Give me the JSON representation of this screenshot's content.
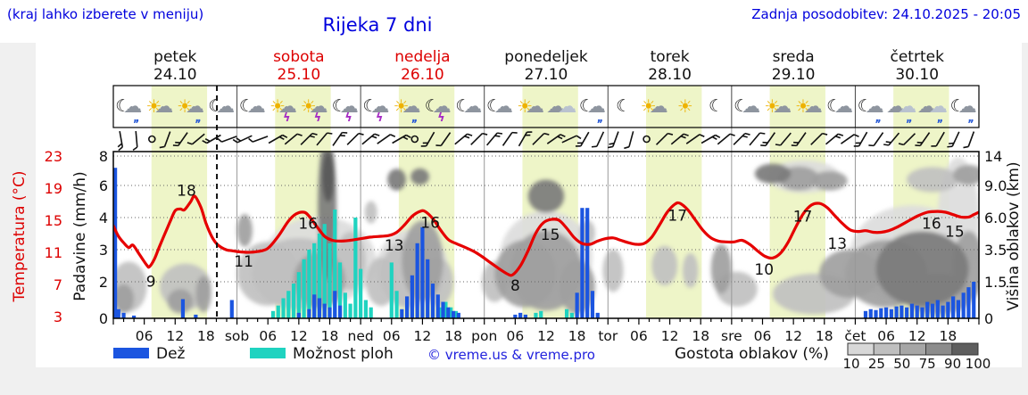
{
  "header": {
    "hint": "(kraj lahko izberete v meniju)",
    "title": "Rijeka 7 dni",
    "last_update": "Zadnja posodobitev: 24.10.2025 - 20:05"
  },
  "colors": {
    "rain": "#1b55e0",
    "showers": "#1fd3c0",
    "temperature": "#e60000",
    "day_band": "#eef5c8",
    "weekend": "#dd0000",
    "weekday": "#111111",
    "blue_text": "#0000dd",
    "cloud_shades": {
      "25": "#dcdcdc",
      "50": "#c0c0c0",
      "75": "#9f9f9f",
      "90": "#7b7b7b",
      "100": "#585858"
    }
  },
  "days": [
    {
      "name": "petek",
      "date": "24.10",
      "weekend": false
    },
    {
      "name": "sobota",
      "date": "25.10",
      "weekend": true
    },
    {
      "name": "nedelja",
      "date": "26.10",
      "weekend": true
    },
    {
      "name": "ponedeljek",
      "date": "27.10",
      "weekend": false
    },
    {
      "name": "torek",
      "date": "28.10",
      "weekend": false
    },
    {
      "name": "sreda",
      "date": "29.10",
      "weekend": false
    },
    {
      "name": "četrtek",
      "date": "30.10",
      "weekend": false
    }
  ],
  "axes": {
    "temp_title": "Temperatura (°C)",
    "temp_ticks": [
      "23",
      "19",
      "15",
      "11",
      "7",
      "3"
    ],
    "rain_title": "Padavine (mm/h)",
    "rain_ticks": [
      "8",
      "6",
      "4",
      "3",
      "2",
      "0"
    ],
    "cloud_title": "Višina oblakov (km)",
    "cloud_ticks": [
      "14",
      "9.0",
      "6.0",
      "3.5",
      "1.5",
      "0"
    ],
    "time_labels": [
      "06",
      "12",
      "18"
    ],
    "day_abbrevs": [
      "sob",
      "ned",
      "pon",
      "tor",
      "sre",
      "čet"
    ]
  },
  "icons": [
    [
      "moon",
      "cloud",
      "rain"
    ],
    [
      "sun",
      "cloud"
    ],
    [
      "sun",
      "cloud",
      "rain"
    ],
    [
      "moon",
      "cloud"
    ],
    [
      "moon",
      "cloud"
    ],
    [
      "sun",
      "cloud",
      "bolt"
    ],
    [
      "sun",
      "cloud",
      "bolt"
    ],
    [
      "moon",
      "cloud",
      "bolt"
    ],
    [
      "moon",
      "cloud",
      "bolt"
    ],
    [
      "sun",
      "cloud",
      "rain"
    ],
    [
      "moon",
      "cloud",
      "bolt"
    ],
    [
      "moon",
      "cloud"
    ],
    [
      "moon",
      "cloud"
    ],
    [
      "sun",
      "cloud"
    ],
    [
      "clouds"
    ],
    [
      "moon",
      "cloud",
      "rain"
    ],
    [
      "moon"
    ],
    [
      "sun",
      "cloud"
    ],
    [
      "sun"
    ],
    [
      "moon"
    ],
    [
      "moon",
      "cloud"
    ],
    [
      "sun",
      "cloud"
    ],
    [
      "sun",
      "cloud"
    ],
    [
      "moon",
      "cloud"
    ],
    [
      "moon",
      "cloud",
      "rain"
    ],
    [
      "clouds",
      "rain"
    ],
    [
      "clouds",
      "rain"
    ],
    [
      "moon",
      "cloud",
      "rain"
    ]
  ],
  "wind": [
    170,
    175,
    "o",
    200,
    215,
    230,
    240,
    250,
    245,
    250,
    60,
    50,
    45,
    40,
    35,
    45,
    50,
    55,
    60,
    "o",
    210,
    215,
    50,
    45,
    40,
    35,
    30,
    45,
    55,
    65,
    210,
    205,
    200,
    195,
    "o",
    45,
    50,
    55,
    60,
    50,
    45,
    40,
    215,
    220,
    215,
    45,
    50,
    55,
    210,
    215,
    220,
    225,
    215,
    210,
    205,
    200
  ],
  "chart_data": {
    "type": "meteogram",
    "title": "Rijeka 7 dni",
    "hours_total": 168,
    "current_time_hour": 20.1,
    "day_band_hours": [
      7.4,
      18.2
    ],
    "temp_axis": {
      "min": 3,
      "max": 23,
      "ticks": [
        23,
        19,
        15,
        11,
        7,
        3
      ]
    },
    "rain_axis": {
      "ticks": [
        8,
        6,
        4,
        3,
        2,
        0
      ]
    },
    "cloud_axis_km": {
      "ticks": [
        14,
        9.0,
        6.0,
        3.5,
        1.5,
        0
      ]
    },
    "temperature": [
      [
        0,
        14.3
      ],
      [
        1,
        13.0
      ],
      [
        2,
        12.2
      ],
      [
        3,
        11.6
      ],
      [
        3.8,
        11.9
      ],
      [
        5,
        10.8
      ],
      [
        6.5,
        9.4
      ],
      [
        7,
        9.2
      ],
      [
        8,
        10.2
      ],
      [
        9,
        11.8
      ],
      [
        10,
        13.3
      ],
      [
        11,
        14.8
      ],
      [
        12,
        16.2
      ],
      [
        13,
        16.4
      ],
      [
        13.8,
        16.3
      ],
      [
        15,
        17.3
      ],
      [
        15.8,
        18.0
      ],
      [
        17,
        16.6
      ],
      [
        18,
        14.6
      ],
      [
        19,
        13.1
      ],
      [
        20,
        12.1
      ],
      [
        21,
        11.6
      ],
      [
        22,
        11.3
      ],
      [
        23,
        11.2
      ],
      [
        24,
        11.1
      ],
      [
        26,
        11.0
      ],
      [
        28,
        11.1
      ],
      [
        30,
        11.5
      ],
      [
        32,
        13.0
      ],
      [
        34,
        14.9
      ],
      [
        35.5,
        15.8
      ],
      [
        37,
        16.0
      ],
      [
        38,
        15.5
      ],
      [
        39.5,
        14.2
      ],
      [
        41,
        13.0
      ],
      [
        42.5,
        12.5
      ],
      [
        44,
        12.4
      ],
      [
        46,
        12.5
      ],
      [
        48,
        12.7
      ],
      [
        50,
        12.9
      ],
      [
        52,
        13.0
      ],
      [
        53.5,
        13.1
      ],
      [
        55,
        13.5
      ],
      [
        56.5,
        14.4
      ],
      [
        58,
        15.5
      ],
      [
        59.5,
        16.1
      ],
      [
        60.5,
        16.1
      ],
      [
        62,
        15.2
      ],
      [
        63.5,
        13.8
      ],
      [
        65,
        12.6
      ],
      [
        66.5,
        12.1
      ],
      [
        68,
        11.7
      ],
      [
        70,
        11.1
      ],
      [
        71.5,
        10.5
      ],
      [
        73,
        9.8
      ],
      [
        75,
        8.9
      ],
      [
        76.5,
        8.3
      ],
      [
        77.5,
        8.2
      ],
      [
        79,
        9.3
      ],
      [
        80.5,
        11.2
      ],
      [
        82,
        13.4
      ],
      [
        83.5,
        14.7
      ],
      [
        85,
        15.1
      ],
      [
        86.5,
        15.0
      ],
      [
        88,
        14.0
      ],
      [
        89.5,
        12.8
      ],
      [
        91,
        12.1
      ],
      [
        92.5,
        12.0
      ],
      [
        94,
        12.4
      ],
      [
        95.5,
        12.7
      ],
      [
        97,
        12.8
      ],
      [
        98.5,
        12.5
      ],
      [
        100,
        12.2
      ],
      [
        101.5,
        12.0
      ],
      [
        103,
        12.1
      ],
      [
        104.5,
        12.9
      ],
      [
        106,
        14.4
      ],
      [
        107.5,
        16.0
      ],
      [
        109,
        17.0
      ],
      [
        110,
        17.1
      ],
      [
        111.5,
        16.3
      ],
      [
        113,
        15.0
      ],
      [
        114.5,
        13.7
      ],
      [
        116,
        12.8
      ],
      [
        117.5,
        12.4
      ],
      [
        119,
        12.3
      ],
      [
        120.5,
        12.3
      ],
      [
        122,
        12.5
      ],
      [
        123.5,
        12.0
      ],
      [
        125,
        11.2
      ],
      [
        126.5,
        10.5
      ],
      [
        128,
        10.3
      ],
      [
        129.5,
        10.9
      ],
      [
        131,
        12.3
      ],
      [
        132.5,
        14.2
      ],
      [
        134,
        15.9
      ],
      [
        135.5,
        16.9
      ],
      [
        137,
        17.1
      ],
      [
        138.5,
        16.6
      ],
      [
        140,
        15.6
      ],
      [
        141.5,
        14.6
      ],
      [
        143,
        13.8
      ],
      [
        144.5,
        13.6
      ],
      [
        146,
        13.7
      ],
      [
        147.5,
        13.5
      ],
      [
        149,
        13.5
      ],
      [
        150.5,
        13.7
      ],
      [
        152,
        14.1
      ],
      [
        154,
        14.8
      ],
      [
        156,
        15.5
      ],
      [
        158,
        16.0
      ],
      [
        160,
        16.1
      ],
      [
        161.5,
        16.0
      ],
      [
        163,
        15.7
      ],
      [
        164.5,
        15.4
      ],
      [
        166,
        15.4
      ],
      [
        167,
        15.7
      ],
      [
        168,
        16.0
      ]
    ],
    "temp_labels": [
      [
        7.3,
        7.4,
        "9"
      ],
      [
        14.2,
        18.7,
        "18"
      ],
      [
        25.3,
        9.9,
        "11"
      ],
      [
        37.8,
        14.6,
        "16"
      ],
      [
        54.5,
        11.9,
        "13"
      ],
      [
        61.5,
        14.7,
        "16"
      ],
      [
        78,
        6.9,
        "8"
      ],
      [
        84.8,
        13.2,
        "15"
      ],
      [
        109.5,
        15.6,
        "17"
      ],
      [
        126.3,
        8.9,
        "10"
      ],
      [
        133.8,
        15.5,
        "17"
      ],
      [
        140.5,
        12.1,
        "13"
      ],
      [
        158.8,
        14.6,
        "16"
      ],
      [
        163.3,
        13.6,
        "15"
      ]
    ],
    "rain_mmh": [
      [
        0,
        7.2
      ],
      [
        1,
        0.5
      ],
      [
        2,
        0.3
      ],
      [
        4,
        0.15
      ],
      [
        13.5,
        1.05
      ],
      [
        16,
        0.2
      ],
      [
        23,
        1.0
      ],
      [
        36,
        0.3
      ],
      [
        38,
        0.5
      ],
      [
        39,
        1.3
      ],
      [
        40,
        1.1
      ],
      [
        41,
        0.8
      ],
      [
        42,
        0.6
      ],
      [
        43,
        1.5
      ],
      [
        44,
        0.7
      ],
      [
        56,
        0.5
      ],
      [
        57,
        1.2
      ],
      [
        58,
        2.2
      ],
      [
        59,
        3.2
      ],
      [
        60,
        3.7
      ],
      [
        61,
        2.7
      ],
      [
        62,
        1.9
      ],
      [
        63,
        1.3
      ],
      [
        64,
        0.9
      ],
      [
        65,
        0.6
      ],
      [
        66,
        0.4
      ],
      [
        67,
        0.3
      ],
      [
        78,
        0.2
      ],
      [
        79,
        0.3
      ],
      [
        80,
        0.2
      ],
      [
        90,
        1.4
      ],
      [
        91,
        4.6
      ],
      [
        92,
        4.6
      ],
      [
        93,
        1.5
      ],
      [
        94,
        0.3
      ],
      [
        146,
        0.4
      ],
      [
        147,
        0.5
      ],
      [
        148,
        0.45
      ],
      [
        149,
        0.55
      ],
      [
        150,
        0.6
      ],
      [
        151,
        0.5
      ],
      [
        152,
        0.65
      ],
      [
        153,
        0.7
      ],
      [
        154,
        0.6
      ],
      [
        155,
        0.8
      ],
      [
        156,
        0.7
      ],
      [
        157,
        0.6
      ],
      [
        158,
        0.9
      ],
      [
        159,
        0.8
      ],
      [
        160,
        1.0
      ],
      [
        161,
        0.7
      ],
      [
        162,
        0.9
      ],
      [
        163,
        1.2
      ],
      [
        164,
        1.0
      ],
      [
        165,
        1.4
      ],
      [
        166,
        1.7
      ],
      [
        167,
        2.0
      ]
    ],
    "showers_mmh": [
      [
        31,
        0.4
      ],
      [
        32,
        0.7
      ],
      [
        33,
        1.1
      ],
      [
        34,
        1.5
      ],
      [
        35,
        1.9
      ],
      [
        36,
        2.3
      ],
      [
        37,
        2.7
      ],
      [
        38,
        3.0
      ],
      [
        39,
        3.2
      ],
      [
        40,
        3.5
      ],
      [
        41,
        3.8
      ],
      [
        42,
        3.2
      ],
      [
        43,
        4.5
      ],
      [
        44,
        2.6
      ],
      [
        45,
        1.4
      ],
      [
        46,
        0.8
      ],
      [
        47,
        4.0
      ],
      [
        48,
        2.4
      ],
      [
        49,
        1.0
      ],
      [
        50,
        0.6
      ],
      [
        54,
        2.6
      ],
      [
        55,
        1.5
      ],
      [
        63.5,
        0.6
      ],
      [
        64.5,
        0.9
      ],
      [
        65.5,
        0.6
      ],
      [
        66.5,
        0.4
      ],
      [
        82,
        0.3
      ],
      [
        83,
        0.4
      ],
      [
        88,
        0.5
      ],
      [
        89,
        0.3
      ]
    ],
    "clouds": [
      [
        40,
        2.8,
        11,
        2.6,
        25
      ],
      [
        58,
        2.3,
        7,
        2.2,
        25
      ],
      [
        84,
        3,
        9,
        2.8,
        25
      ],
      [
        134,
        10.5,
        7,
        2.4,
        25
      ],
      [
        155,
        3.2,
        12,
        3,
        25
      ],
      [
        164,
        6,
        4,
        5,
        25
      ],
      [
        3,
        1.3,
        3.5,
        1.2,
        50
      ],
      [
        14,
        1.3,
        5,
        1.1,
        50
      ],
      [
        30,
        2,
        6,
        1.7,
        50
      ],
      [
        36,
        2,
        9,
        1.9,
        50
      ],
      [
        46,
        2.8,
        3,
        1.8,
        50
      ],
      [
        50,
        6.5,
        1.2,
        1,
        50
      ],
      [
        52,
        1.5,
        3,
        1.2,
        50
      ],
      [
        57,
        2,
        5,
        1.8,
        50
      ],
      [
        63,
        1.5,
        3,
        1.2,
        50
      ],
      [
        74,
        1.5,
        2.5,
        1,
        50
      ],
      [
        92,
        4.8,
        1.5,
        1,
        50
      ],
      [
        97,
        2.2,
        2,
        1.2,
        50
      ],
      [
        107,
        2.5,
        2.5,
        1.2,
        50
      ],
      [
        112,
        2.2,
        1.5,
        1,
        50
      ],
      [
        121,
        1.2,
        4,
        0.8,
        50
      ],
      [
        136,
        1,
        8,
        0.9,
        50
      ],
      [
        159,
        10,
        5,
        1.8,
        50
      ],
      [
        2,
        0.8,
        2,
        0.6,
        75
      ],
      [
        13,
        0.7,
        2.5,
        0.5,
        75
      ],
      [
        17.5,
        1,
        1.5,
        0.8,
        75
      ],
      [
        25.5,
        5,
        1.5,
        1.3,
        75
      ],
      [
        40,
        1.6,
        5,
        1.4,
        75
      ],
      [
        60,
        2.8,
        4,
        2.4,
        75
      ],
      [
        80,
        2,
        6,
        1.8,
        75
      ],
      [
        84,
        2.2,
        7,
        2.2,
        75
      ],
      [
        90,
        1.3,
        3.5,
        1.3,
        75
      ],
      [
        118,
        2.3,
        2,
        1.4,
        75
      ],
      [
        133,
        10.2,
        4,
        1.8,
        75
      ],
      [
        139,
        9.8,
        3.5,
        1.4,
        75
      ],
      [
        143,
        2,
        6,
        1.3,
        75
      ],
      [
        150,
        2,
        8,
        1.8,
        75
      ],
      [
        160,
        1,
        7,
        0.9,
        75
      ],
      [
        166,
        10.8,
        3,
        1.7,
        75
      ],
      [
        166,
        2.5,
        3,
        2,
        75
      ],
      [
        41.5,
        7,
        1.8,
        6.5,
        90
      ],
      [
        55,
        10,
        1.8,
        1.6,
        90
      ],
      [
        59.5,
        10.5,
        1.8,
        1.4,
        90
      ],
      [
        84,
        8,
        3.5,
        1.7,
        90
      ],
      [
        128,
        11,
        3.5,
        1.7,
        90
      ],
      [
        157,
        2.3,
        9,
        2.1,
        90
      ],
      [
        41.7,
        10.5,
        1.2,
        3.5,
        100
      ]
    ]
  },
  "legend": {
    "rain_label": "Dež",
    "showers_label": "Možnost ploh",
    "copyright": "© vreme.us & vreme.pro",
    "cloud_density_label": "Gostota oblakov (%)",
    "scale_values": [
      "10",
      "25",
      "50",
      "75",
      "90",
      "100"
    ],
    "scale_colors": [
      "#d8d8d8",
      "#bfbfbf",
      "#a6a6a6",
      "#8c8c8c",
      "#5e5e5e"
    ]
  }
}
